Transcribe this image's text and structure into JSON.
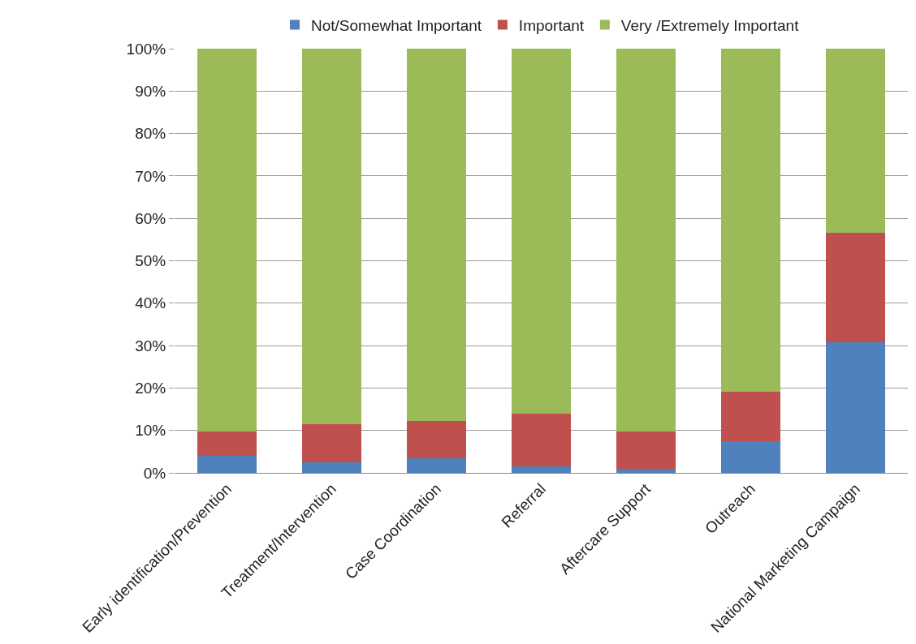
{
  "chart_data": {
    "type": "bar",
    "stacked": true,
    "categories": [
      "Early identification/Prevention",
      "Treatment/Intervention",
      "Case Coordination",
      "Referral",
      "Aftercare Support",
      "Outreach",
      "National Marketing Campaign"
    ],
    "series": [
      {
        "name": "Not/Somewhat Important",
        "color": "#4f81bd",
        "values": [
          4.0,
          2.4,
          3.5,
          1.5,
          1.0,
          7.4,
          30.8
        ]
      },
      {
        "name": "Important",
        "color": "#c0504d",
        "values": [
          5.8,
          9.1,
          8.8,
          12.5,
          8.8,
          11.7,
          25.8
        ]
      },
      {
        "name": "Very /Extremely Important",
        "color": "#9bbb59",
        "values": [
          90.2,
          88.5,
          87.7,
          86.0,
          90.2,
          80.9,
          43.4
        ]
      }
    ],
    "ylim": [
      0,
      100
    ],
    "yticks": [
      {
        "value": 0,
        "label": "0%"
      },
      {
        "value": 10,
        "label": "10%"
      },
      {
        "value": 20,
        "label": "20%"
      },
      {
        "value": 30,
        "label": "30%"
      },
      {
        "value": 40,
        "label": "40%"
      },
      {
        "value": 50,
        "label": "50%"
      },
      {
        "value": 60,
        "label": "60%"
      },
      {
        "value": 70,
        "label": "70%"
      },
      {
        "value": 80,
        "label": "80%"
      },
      {
        "value": 90,
        "label": "90%"
      },
      {
        "value": 100,
        "label": "100%"
      }
    ],
    "grid": "y",
    "legend": "top"
  }
}
